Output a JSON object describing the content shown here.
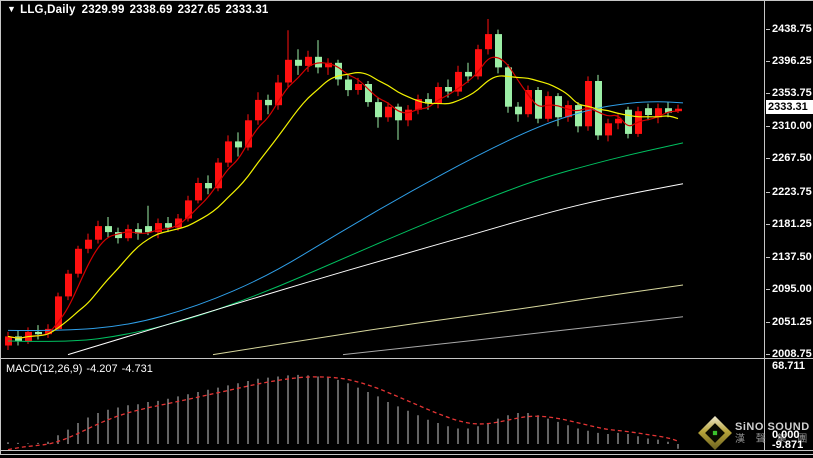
{
  "header": {
    "dropdown_icon": "▼",
    "symbol": "LLG,Daily",
    "open": "2329.99",
    "high": "2338.69",
    "low": "2327.65",
    "close": "2333.31"
  },
  "macd_panel": {
    "label": "MACD(12,26,9)",
    "macd_value": "-4.207",
    "signal_value": "-4.731",
    "axis_max": "68.711",
    "axis_zero": "0.000",
    "axis_min": "-9.871"
  },
  "logo": {
    "brand": "SiNO SOUND",
    "brand_cn": "漢 聲 集 團"
  },
  "colors": {
    "background": "#000000",
    "bull": "#ff1010",
    "bear": "#9ceea6",
    "ma_fast_red": "#d40000",
    "ma_yellow": "#f2f200",
    "ma_blue": "#2f9fe8",
    "ma_green": "#00c060",
    "ma_white": "#ffffff",
    "ma_khaki": "#d8d89e",
    "ma_gray": "#a9a9a9",
    "macd_bar": "#c6c6c6",
    "macd_signal": "#e43434",
    "axis_text": "#ffffff",
    "panel_border": "#c6c6c6",
    "last_price_bg": "#ffffff",
    "last_price_text": "#000000"
  },
  "chart_data": [
    {
      "type": "candlestick",
      "title": "LLG,Daily",
      "legend_position": "top-left",
      "grid": false,
      "y_axis_ticks": [
        "2438.75",
        "2396.25",
        "2353.75",
        "2310.00",
        "2267.50",
        "2223.75",
        "2181.25",
        "2137.50",
        "2095.00",
        "2051.25",
        "2008.75"
      ],
      "ylim": [
        2008.75,
        2438.75
      ],
      "last_price": 2333.31,
      "ohlc_current": {
        "open": 2329.99,
        "high": 2338.69,
        "low": 2327.65,
        "close": 2333.31
      },
      "candles": [
        [
          2020,
          2038,
          2014,
          2032
        ],
        [
          2032,
          2040,
          2020,
          2026
        ],
        [
          2026,
          2044,
          2022,
          2038
        ],
        [
          2038,
          2047,
          2028,
          2035
        ],
        [
          2035,
          2048,
          2030,
          2042
        ],
        [
          2042,
          2090,
          2040,
          2085
        ],
        [
          2085,
          2120,
          2080,
          2115
        ],
        [
          2115,
          2152,
          2110,
          2148
        ],
        [
          2148,
          2168,
          2142,
          2160
        ],
        [
          2160,
          2185,
          2155,
          2178
        ],
        [
          2178,
          2190,
          2163,
          2170
        ],
        [
          2170,
          2176,
          2155,
          2162
        ],
        [
          2162,
          2180,
          2158,
          2174
        ],
        [
          2174,
          2182,
          2160,
          2168
        ],
        [
          2178,
          2205,
          2166,
          2170
        ],
        [
          2170,
          2188,
          2162,
          2182
        ],
        [
          2182,
          2190,
          2170,
          2176
        ],
        [
          2176,
          2194,
          2172,
          2188
        ],
        [
          2188,
          2218,
          2184,
          2212
        ],
        [
          2212,
          2242,
          2208,
          2235
        ],
        [
          2235,
          2245,
          2220,
          2228
        ],
        [
          2228,
          2268,
          2224,
          2262
        ],
        [
          2262,
          2298,
          2256,
          2290
        ],
        [
          2290,
          2302,
          2270,
          2282
        ],
        [
          2282,
          2326,
          2278,
          2318
        ],
        [
          2318,
          2355,
          2312,
          2345
        ],
        [
          2345,
          2352,
          2326,
          2338
        ],
        [
          2338,
          2378,
          2332,
          2368
        ],
        [
          2368,
          2437,
          2362,
          2398
        ],
        [
          2398,
          2412,
          2378,
          2390
        ],
        [
          2390,
          2410,
          2382,
          2402
        ],
        [
          2402,
          2424,
          2380,
          2388
        ],
        [
          2388,
          2400,
          2378,
          2394
        ],
        [
          2394,
          2398,
          2364,
          2372
        ],
        [
          2372,
          2378,
          2350,
          2358
        ],
        [
          2358,
          2374,
          2352,
          2366
        ],
        [
          2366,
          2370,
          2336,
          2342
        ],
        [
          2342,
          2348,
          2308,
          2322
        ],
        [
          2322,
          2342,
          2316,
          2336
        ],
        [
          2336,
          2340,
          2292,
          2318
        ],
        [
          2318,
          2338,
          2310,
          2332
        ],
        [
          2332,
          2352,
          2326,
          2346
        ],
        [
          2346,
          2354,
          2332,
          2340
        ],
        [
          2340,
          2368,
          2334,
          2362
        ],
        [
          2362,
          2372,
          2348,
          2356
        ],
        [
          2356,
          2390,
          2350,
          2382
        ],
        [
          2382,
          2394,
          2368,
          2376
        ],
        [
          2376,
          2418,
          2372,
          2412
        ],
        [
          2412,
          2452,
          2405,
          2432
        ],
        [
          2432,
          2438,
          2380,
          2388
        ],
        [
          2388,
          2392,
          2328,
          2336
        ],
        [
          2336,
          2342,
          2316,
          2326
        ],
        [
          2326,
          2364,
          2322,
          2358
        ],
        [
          2358,
          2362,
          2314,
          2320
        ],
        [
          2320,
          2356,
          2316,
          2350
        ],
        [
          2350,
          2354,
          2310,
          2322
        ],
        [
          2322,
          2344,
          2316,
          2338
        ],
        [
          2338,
          2342,
          2302,
          2310
        ],
        [
          2310,
          2376,
          2304,
          2370
        ],
        [
          2370,
          2378,
          2292,
          2298
        ],
        [
          2298,
          2320,
          2290,
          2314
        ],
        [
          2314,
          2326,
          2306,
          2320
        ],
        [
          2332,
          2336,
          2294,
          2300
        ],
        [
          2300,
          2336,
          2296,
          2330
        ],
        [
          2334,
          2340,
          2318,
          2325
        ],
        [
          2322,
          2340,
          2314,
          2334
        ],
        [
          2334,
          2342,
          2322,
          2328
        ],
        [
          2329.99,
          2338.69,
          2327.65,
          2333.31
        ]
      ],
      "overlays_computed": [
        {
          "name": "ma-fast",
          "period": 4,
          "color_key": "ma_fast_red"
        },
        {
          "name": "ma-mid",
          "period": 9,
          "color_key": "ma_yellow"
        }
      ],
      "overlays_polylines": [
        {
          "name": "ma-blue",
          "color_key": "ma_blue",
          "points": [
            [
              0,
              2040
            ],
            [
              5,
              2039
            ],
            [
              12,
              2046
            ],
            [
              19,
              2072
            ],
            [
              26,
              2112
            ],
            [
              33,
              2168
            ],
            [
              40,
              2222
            ],
            [
              47,
              2272
            ],
            [
              53,
              2310
            ],
            [
              58,
              2332
            ],
            [
              62,
              2341
            ],
            [
              65,
              2343
            ],
            [
              67.5,
              2341
            ]
          ]
        },
        {
          "name": "ma-green",
          "color_key": "ma_green",
          "points": [
            [
              0,
              2026
            ],
            [
              6,
              2024
            ],
            [
              12,
              2034
            ],
            [
              19,
              2058
            ],
            [
              26,
              2092
            ],
            [
              33,
              2132
            ],
            [
              40,
              2172
            ],
            [
              47,
              2210
            ],
            [
              53,
              2240
            ],
            [
              59,
              2262
            ],
            [
              63,
              2275
            ],
            [
              67.5,
              2288
            ]
          ]
        },
        {
          "name": "ma-white",
          "color_key": "ma_white",
          "points": [
            [
              6,
              2008
            ],
            [
              14,
              2040
            ],
            [
              22,
              2072
            ],
            [
              30,
              2104
            ],
            [
              38,
              2135
            ],
            [
              46,
              2165
            ],
            [
              54,
              2196
            ],
            [
              60,
              2215
            ],
            [
              67.5,
              2234
            ]
          ]
        },
        {
          "name": "ma-khaki",
          "color_key": "ma_khaki",
          "points": [
            [
              20.5,
              2008
            ],
            [
              30,
              2028
            ],
            [
              40,
              2048
            ],
            [
              50,
              2066
            ],
            [
              58,
              2082
            ],
            [
              67.5,
              2100
            ]
          ]
        },
        {
          "name": "ma-gray",
          "color_key": "ma_gray",
          "points": [
            [
              33.5,
              2008
            ],
            [
              42,
              2020
            ],
            [
              50,
              2032
            ],
            [
              58,
              2044
            ],
            [
              67.5,
              2058
            ]
          ]
        }
      ]
    },
    {
      "type": "bar",
      "name": "MACD",
      "params": [
        12,
        26,
        9
      ],
      "macd_last": -4.207,
      "signal_last": -4.731,
      "ylim": [
        -9.871,
        68.711
      ],
      "values": [
        1.5,
        1,
        0.5,
        1,
        2,
        8,
        13,
        19,
        24,
        28,
        31,
        33,
        35,
        36,
        38,
        39,
        41,
        43,
        45,
        47,
        49,
        51,
        53,
        55,
        57,
        59,
        60,
        61,
        62,
        62.5,
        62,
        61,
        60,
        58,
        55,
        51,
        47,
        43,
        38,
        34,
        30,
        26,
        22,
        19,
        16,
        14,
        14,
        16,
        19,
        23,
        26,
        28,
        28,
        26,
        23,
        20,
        17,
        14,
        12,
        10,
        9,
        10,
        9,
        7,
        5,
        4,
        2,
        -4.207
      ]
    }
  ]
}
